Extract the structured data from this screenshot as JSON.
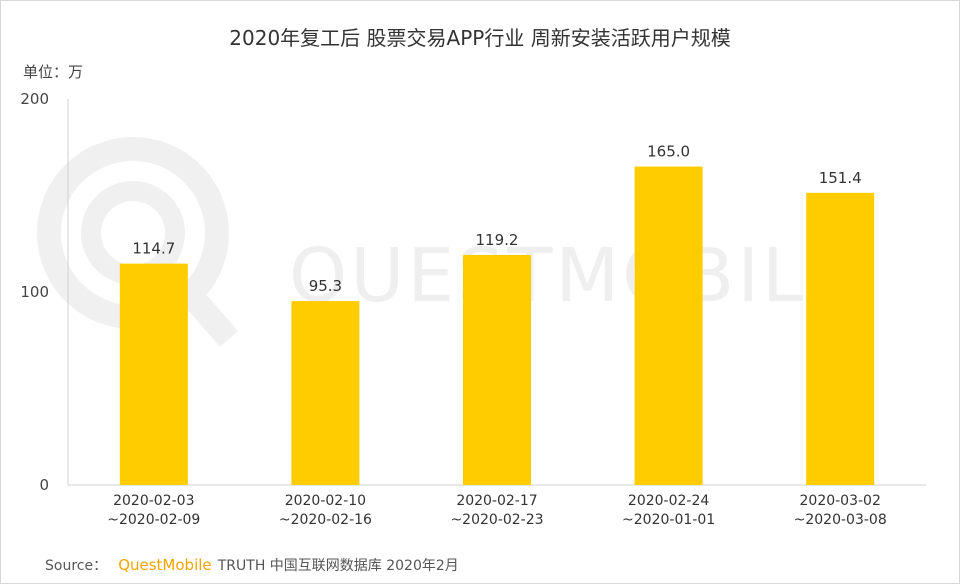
{
  "header": {
    "title": "2020年复工后 股票交易APP行业 周新安装活跃用户规模",
    "unit": "单位：万"
  },
  "watermark": {
    "text": "QUESTMOBILE",
    "icon": "questmobile-logo-icon"
  },
  "footer": {
    "source_label": "Source：",
    "brand": "QuestMobile",
    "product": "TRUTH 中国互联网数据库 2020年2月"
  },
  "colors": {
    "bar": "#ffcc00",
    "axis": "#d0d0d0",
    "text": "#333333",
    "brand": "#f5a300"
  },
  "chart_data": {
    "type": "bar",
    "title": "2020年复工后 股票交易APP行业 周新安装活跃用户规模",
    "ylabel": "单位：万",
    "xlabel": "",
    "categories": [
      "2020-02-03\n~2020-02-09",
      "2020-02-10\n~2020-02-16",
      "2020-02-17\n~2020-02-23",
      "2020-02-24\n~2020-01-01",
      "2020-03-02\n~2020-03-08"
    ],
    "values": [
      114.7,
      95.3,
      119.2,
      165.0,
      151.4
    ],
    "value_labels": [
      "114.7",
      "95.3",
      "119.2",
      "165.0",
      "151.4"
    ],
    "ylim": [
      0,
      200
    ],
    "yticks": [
      0,
      100,
      200
    ],
    "grid": false,
    "legend": "none"
  }
}
